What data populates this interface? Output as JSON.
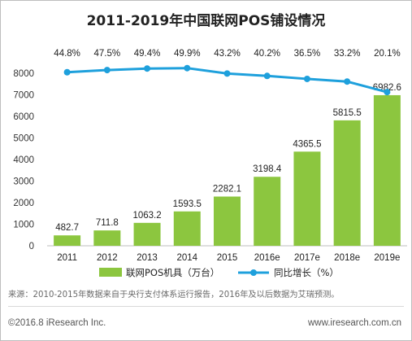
{
  "chart_data": {
    "type": "bar",
    "title": "2011-2019年中国联网POS铺设情况",
    "categories": [
      "2011",
      "2012",
      "2013",
      "2014",
      "2015",
      "2016e",
      "2017e",
      "2018e",
      "2019e"
    ],
    "series": [
      {
        "name": "联网POS机具（万台）",
        "type": "bar",
        "color": "#8cc63f",
        "values": [
          482.7,
          711.8,
          1063.2,
          1593.5,
          2282.1,
          3198.4,
          4365.5,
          5815.5,
          6982.6
        ],
        "labels": [
          "482.7",
          "711.8",
          "1063.2",
          "1593.5",
          "2282.1",
          "3198.4",
          "4365.5",
          "5815.5",
          "6982.6"
        ]
      },
      {
        "name": "同比增长（%）",
        "type": "line",
        "color": "#1ea0dc",
        "values": [
          44.8,
          47.5,
          49.4,
          49.9,
          43.2,
          40.2,
          36.5,
          33.2,
          20.1
        ],
        "labels": [
          "44.8%",
          "47.5%",
          "49.4%",
          "49.9%",
          "43.2%",
          "40.2%",
          "36.5%",
          "33.2%",
          "20.1%"
        ]
      }
    ],
    "yticks": [
      "0",
      "1000",
      "2000",
      "3000",
      "4000",
      "5000",
      "6000",
      "7000",
      "8000"
    ],
    "ylim": [
      0,
      8000
    ],
    "grid": false,
    "legend": "bottom"
  },
  "footer": {
    "source": "来源：2010-2015年数据来自于央行支付体系运行报告，2016年及以后数据为艾瑞预测。",
    "copyright": "©2016.8 iResearch Inc.",
    "website": "www.iresearch.com.cn"
  }
}
